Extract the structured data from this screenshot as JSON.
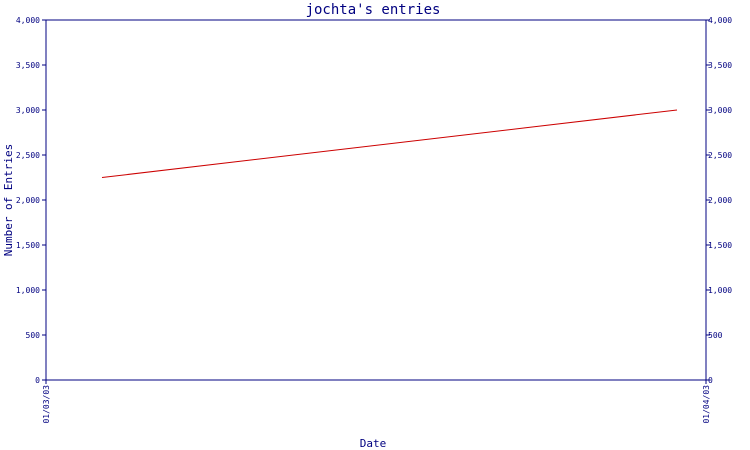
{
  "chart_data": {
    "type": "line",
    "title": "jochta's entries",
    "xlabel": "Date",
    "ylabel": "Number of Entries",
    "x_tick_labels": [
      "01/03/03",
      "01/04/03"
    ],
    "y_tick_labels": [
      "0",
      "500",
      "1,000",
      "1,500",
      "2,000",
      "2,500",
      "3,000",
      "3,500",
      "4,000"
    ],
    "ylim": [
      0,
      4000
    ],
    "y_ticks": [
      0,
      500,
      1000,
      1500,
      2000,
      2500,
      3000,
      3500,
      4000
    ],
    "x": [
      "01/03/03",
      "01/04/03"
    ],
    "grid": false,
    "series": [
      {
        "color": "#cc0000",
        "values": [
          2250,
          3000
        ]
      }
    ]
  }
}
